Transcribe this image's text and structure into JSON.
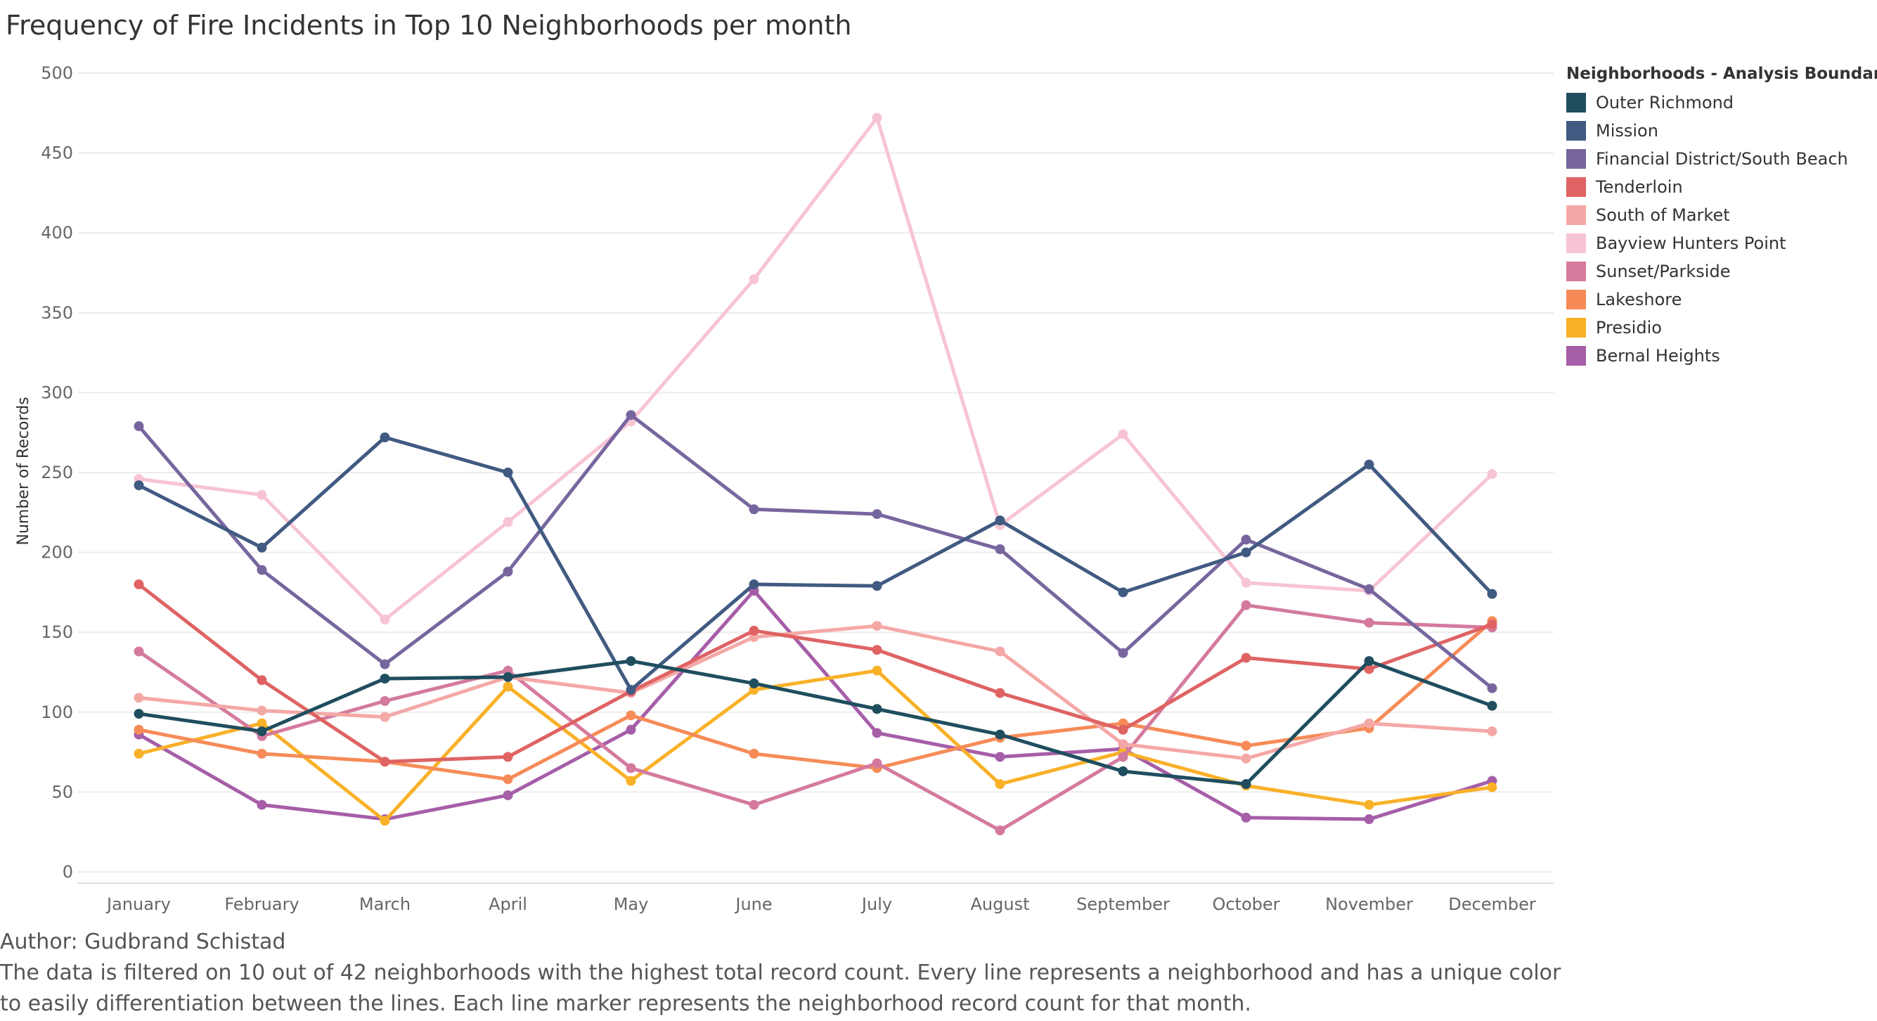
{
  "title": "Frequency of Fire Incidents in Top 10 Neighborhoods per month",
  "legend": {
    "title": "Neighborhoods - Analysis Boundaries"
  },
  "footer": {
    "author": "Author: Gudbrand Schistad",
    "note_line1": "The data is filtered on 10 out of 42 neighborhoods with the highest total record count. Every line represents a neighborhood and has a unique color",
    "note_line2": "to easily differentiation between the lines. Each line marker represents the neighborhood record count for that month."
  },
  "chart_data": {
    "type": "line",
    "title": "Frequency of Fire Incidents in Top 10 Neighborhoods per month",
    "xlabel": "",
    "ylabel": "Number of Records",
    "ylim": [
      0,
      500
    ],
    "yticks": [
      0,
      50,
      100,
      150,
      200,
      250,
      300,
      350,
      400,
      450,
      500
    ],
    "grid": true,
    "legend_position": "right",
    "categories": [
      "January",
      "February",
      "March",
      "April",
      "May",
      "June",
      "July",
      "August",
      "September",
      "October",
      "November",
      "December"
    ],
    "series": [
      {
        "name": "Outer Richmond",
        "color": "#1f4e5f",
        "values": [
          99,
          88,
          121,
          122,
          132,
          118,
          102,
          86,
          63,
          55,
          132,
          104
        ]
      },
      {
        "name": "Mission",
        "color": "#415a82",
        "values": [
          242,
          203,
          272,
          250,
          114,
          180,
          179,
          220,
          175,
          200,
          255,
          174
        ]
      },
      {
        "name": "Financial District/South Beach",
        "color": "#77669e",
        "values": [
          279,
          189,
          130,
          188,
          286,
          227,
          224,
          202,
          137,
          208,
          177,
          115
        ]
      },
      {
        "name": "Tenderloin",
        "color": "#df6363",
        "values": [
          180,
          120,
          69,
          72,
          113,
          151,
          139,
          112,
          89,
          134,
          127,
          155
        ]
      },
      {
        "name": "South of Market",
        "color": "#f4a8a6",
        "values": [
          109,
          101,
          97,
          122,
          112,
          147,
          154,
          138,
          80,
          71,
          93,
          88
        ]
      },
      {
        "name": "Bayview Hunters Point",
        "color": "#f7c4d4",
        "values": [
          246,
          236,
          158,
          219,
          282,
          371,
          472,
          217,
          274,
          181,
          176,
          249
        ]
      },
      {
        "name": "Sunset/Parkside",
        "color": "#d47a9e",
        "values": [
          138,
          85,
          107,
          126,
          65,
          42,
          68,
          26,
          72,
          167,
          156,
          153
        ]
      },
      {
        "name": "Lakeshore",
        "color": "#f68b58",
        "values": [
          89,
          74,
          69,
          58,
          98,
          74,
          65,
          84,
          93,
          79,
          90,
          157
        ]
      },
      {
        "name": "Presidio",
        "color": "#f9b128",
        "values": [
          74,
          93,
          32,
          116,
          57,
          114,
          126,
          55,
          75,
          54,
          42,
          53
        ]
      },
      {
        "name": "Bernal Heights",
        "color": "#a65ea8",
        "values": [
          86,
          42,
          33,
          48,
          89,
          176,
          87,
          72,
          77,
          34,
          33,
          57
        ]
      }
    ]
  }
}
